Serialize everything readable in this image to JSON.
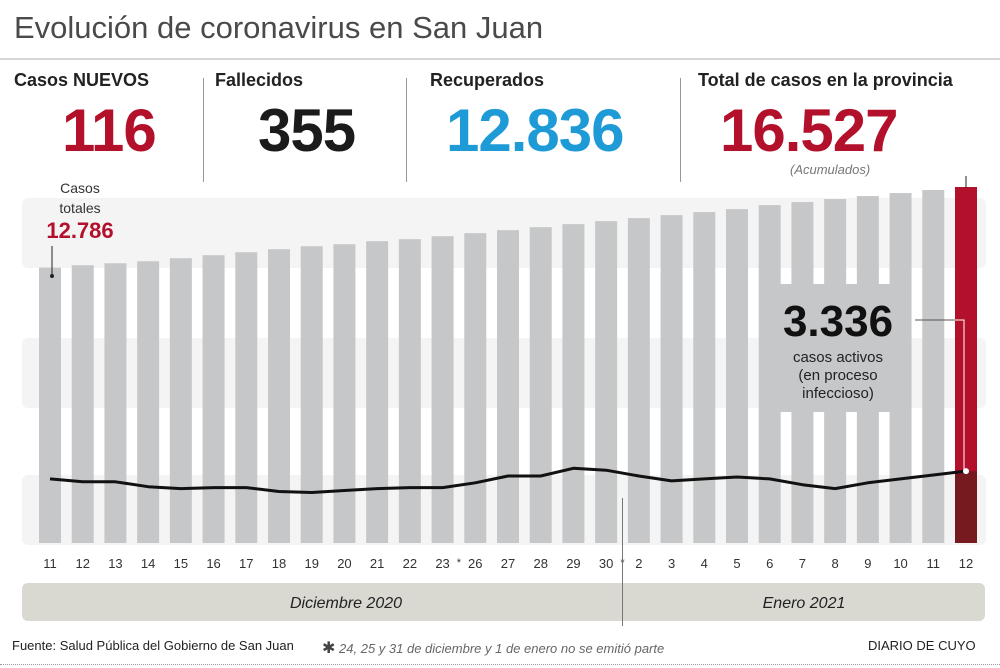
{
  "header": {
    "title": "Evolución de coronavirus en San Juan",
    "stats": [
      {
        "label": "Casos NUEVOS",
        "value": "116",
        "color": "#b3102b"
      },
      {
        "label": "Fallecidos",
        "value": "355",
        "color": "#1b1b1b"
      },
      {
        "label": "Recuperados",
        "value": "12.836",
        "color": "#1e9bd7"
      },
      {
        "label": "Total de casos en la provincia",
        "value": "16.527",
        "color": "#b3102b",
        "note": "(Acumulados)"
      }
    ]
  },
  "chart_data": {
    "type": "bar",
    "categories": [
      "11",
      "12",
      "13",
      "14",
      "15",
      "16",
      "17",
      "18",
      "19",
      "20",
      "21",
      "22",
      "23",
      "26",
      "27",
      "28",
      "29",
      "30",
      "2",
      "3",
      "4",
      "5",
      "6",
      "7",
      "8",
      "9",
      "10",
      "11",
      "12"
    ],
    "series": [
      {
        "values": [
          12786,
          12894,
          12987,
          13081,
          13220,
          13360,
          13500,
          13639,
          13779,
          13872,
          14012,
          14105,
          14244,
          14384,
          14524,
          14663,
          14803,
          14943,
          15082,
          15222,
          15362,
          15501,
          15687,
          15827,
          15967,
          16106,
          16246,
          16386,
          16527
        ]
      },
      {
        "type": "line",
        "values": [
          2975,
          2840,
          2840,
          2615,
          2525,
          2570,
          2570,
          2390,
          2345,
          2435,
          2525,
          2570,
          2570,
          2795,
          3110,
          3110,
          3470,
          3380,
          3110,
          2885,
          2975,
          3065,
          2975,
          2705,
          2525,
          2795,
          2975,
          3155,
          3336
        ]
      }
    ],
    "gap_markers": [
      "*",
      "*"
    ],
    "first_annotation": {
      "line1": "Casos",
      "line2": "totales",
      "value": "12.786"
    },
    "last_annotation": {
      "value": "3.336",
      "line1": "casos activos",
      "line2": "(en proceso",
      "line3": "infeccioso)"
    },
    "months": [
      "Diciembre 2020",
      "Enero 2021"
    ],
    "colors": {
      "bar": "#c6c7c9",
      "highlight": "#b3102b",
      "highlight_dark": "#761a20",
      "line": "#111111",
      "month_band": "#d9d9d1"
    },
    "ylim": [
      0,
      16527
    ],
    "grid": false
  },
  "footer": {
    "source": "Fuente: Salud Pública del Gobierno de San Juan",
    "note": "24, 25 y 31 de diciembre y 1 de enero no se emitió parte",
    "note_marker": "✱",
    "brand": "DIARIO DE CUYO"
  }
}
